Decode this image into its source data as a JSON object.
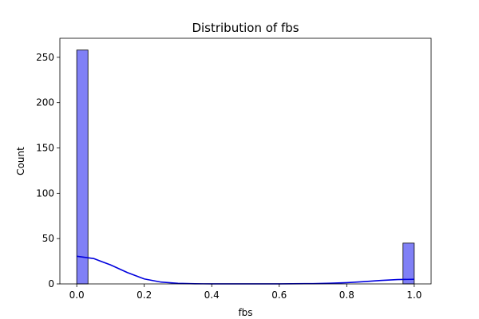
{
  "chart_data": {
    "type": "bar",
    "title": "Distribution of fbs",
    "xlabel": "fbs",
    "ylabel": "Count",
    "xlim": [
      -0.05,
      1.05
    ],
    "ylim": [
      0,
      271
    ],
    "xticks": [
      "0.0",
      "0.2",
      "0.4",
      "0.6",
      "0.8",
      "1.0"
    ],
    "xtick_values": [
      0.0,
      0.2,
      0.4,
      0.6,
      0.8,
      1.0
    ],
    "yticks": [
      "0",
      "50",
      "100",
      "150",
      "200",
      "250"
    ],
    "ytick_values": [
      0,
      50,
      100,
      150,
      200,
      250
    ],
    "grid": false,
    "histogram": {
      "bin_width": 0.0333,
      "bins": [
        {
          "x_start": 0.0,
          "x_end": 0.0333,
          "count": 258
        },
        {
          "x_start": 0.9667,
          "x_end": 1.0,
          "count": 45
        }
      ]
    },
    "kde": {
      "x": [
        0.0,
        0.05,
        0.1,
        0.15,
        0.2,
        0.25,
        0.3,
        0.35,
        0.4,
        0.5,
        0.6,
        0.7,
        0.75,
        0.8,
        0.85,
        0.9,
        0.95,
        1.0
      ],
      "y": [
        30.5,
        28,
        21,
        12.5,
        5.5,
        2,
        0.6,
        0.15,
        0.05,
        0.02,
        0.05,
        0.3,
        0.7,
        1.4,
        2.5,
        3.8,
        4.8,
        5.1
      ]
    },
    "colors": {
      "bar_fill": "#8080f6",
      "bar_edge": "#000000",
      "kde_line": "#0000dd"
    }
  }
}
